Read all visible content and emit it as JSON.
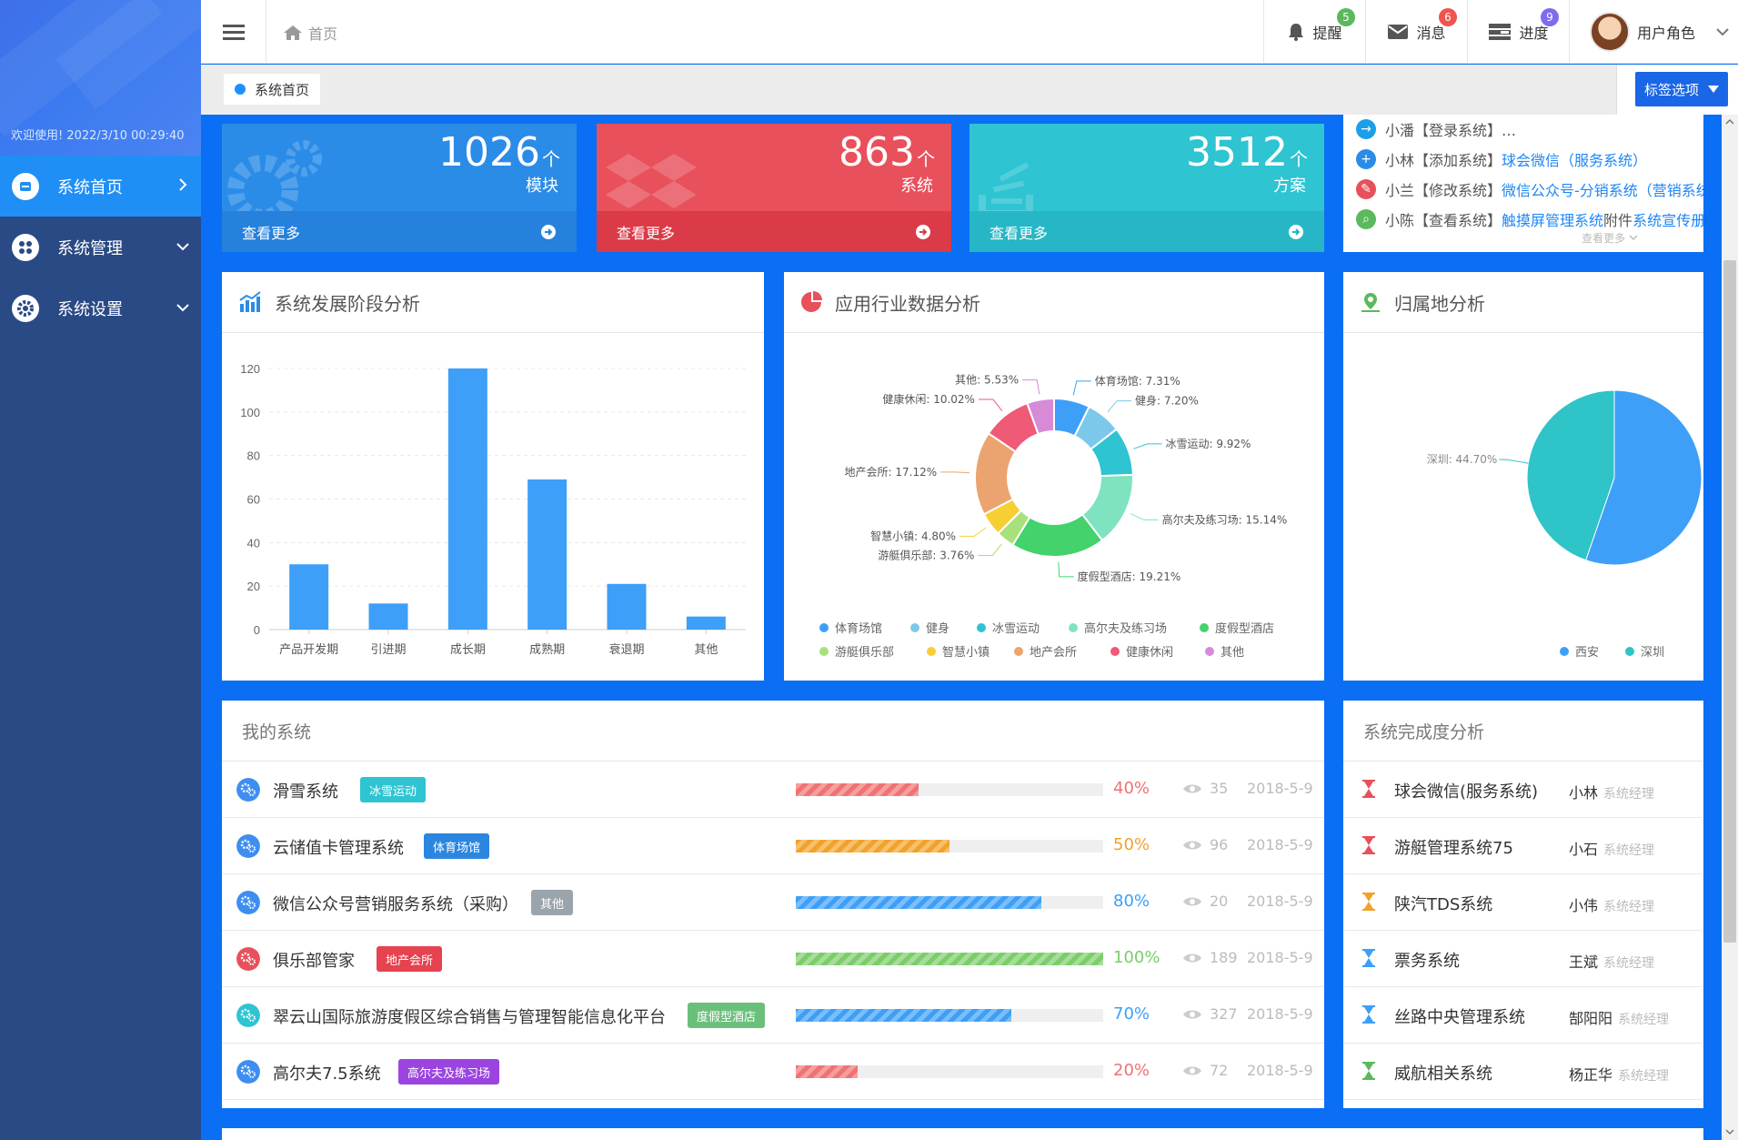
{
  "sidebar": {
    "welcome": "欢迎使用! 2022/3/10 00:29:40",
    "items": [
      {
        "label": "系统首页",
        "icon": "home-icon",
        "active": true
      },
      {
        "label": "系统管理",
        "icon": "grid-icon",
        "active": false
      },
      {
        "label": "系统设置",
        "icon": "gear-icon",
        "active": false
      }
    ]
  },
  "topbar": {
    "breadcrumb": "首页",
    "reminder": {
      "label": "提醒",
      "badge": "5",
      "color": "#5cb85c"
    },
    "messages": {
      "label": "消息",
      "badge": "6",
      "color": "#f0544f"
    },
    "progress": {
      "label": "进度",
      "badge": "9",
      "color": "#7b6cf0"
    },
    "user": {
      "label": "用户角色"
    }
  },
  "tabbar": {
    "tab": "系统首页",
    "options": "标签选项"
  },
  "stats": [
    {
      "number": "1026",
      "unit": "个",
      "sub": "模块",
      "more": "查看更多",
      "color": "#2b8ce8",
      "foot": "#2581dc"
    },
    {
      "number": "863",
      "unit": "个",
      "sub": "系统",
      "more": "查看更多",
      "color": "#e8505b",
      "foot": "#db3a48"
    },
    {
      "number": "3512",
      "unit": "个",
      "sub": "方案",
      "more": "查看更多",
      "color": "#2ec4d2",
      "foot": "#26b6c6"
    }
  ],
  "activity": {
    "rows": [
      {
        "user": "小潘",
        "action": "【登录系统】…",
        "link": "",
        "extra": "",
        "link2": "",
        "color": "#1aa0e8"
      },
      {
        "user": "小林",
        "action": "【添加系统】",
        "link": "球会微信（服务系统）",
        "extra": "",
        "link2": "",
        "color": "#2b8ce8"
      },
      {
        "user": "小兰",
        "action": "【修改系统】",
        "link": "微信公众号-分销系统（营销系统",
        "extra": "",
        "link2": "",
        "color": "#e8505b"
      },
      {
        "user": "小陈",
        "action": "【查看系统】",
        "link": "触摸屏管理系统",
        "extra": " 附件 ",
        "link2": "系统宣传册",
        "color": "#5cb85c"
      }
    ],
    "more": "查看更多"
  },
  "panels": {
    "stage": "系统发展阶段分析",
    "industry": "应用行业数据分析",
    "region": "归属地分析",
    "my_systems": "我的系统",
    "completion": "系统完成度分析"
  },
  "chart_data": [
    {
      "type": "bar",
      "title": "系统发展阶段分析",
      "categories": [
        "产品开发期",
        "引进期",
        "成长期",
        "成熟期",
        "衰退期",
        "其他"
      ],
      "values": [
        30,
        12,
        120,
        69,
        21,
        6
      ],
      "ylim": [
        0,
        120
      ],
      "yticks": [
        0,
        20,
        40,
        60,
        80,
        100,
        120
      ],
      "grid": true,
      "color": "#3d9ff7"
    },
    {
      "type": "pie",
      "donut": true,
      "title": "应用行业数据分析",
      "slices": [
        {
          "name": "体育场馆",
          "value": 7.31,
          "label": "体育场馆: 7.31%",
          "color": "#3d9ff7"
        },
        {
          "name": "健身",
          "value": 7.2,
          "label": "健身: 7.20%",
          "color": "#7cc8ea"
        },
        {
          "name": "冰雪运动",
          "value": 9.92,
          "label": "冰雪运动: 9.92%",
          "color": "#2ec4d2"
        },
        {
          "name": "高尔夫及练习场",
          "value": 15.14,
          "label": "高尔夫及练习场: 15.14%",
          "color": "#7fe3bf"
        },
        {
          "name": "度假型酒店",
          "value": 19.21,
          "label": "度假型酒店: 19.21%",
          "color": "#43d26c"
        },
        {
          "name": "游艇俱乐部",
          "value": 3.76,
          "label": "游艇俱乐部: 3.76%",
          "color": "#a8e07a"
        },
        {
          "name": "智慧小镇",
          "value": 4.8,
          "label": "智慧小镇: 4.80%",
          "color": "#f7cf34"
        },
        {
          "name": "地产会所",
          "value": 17.12,
          "label": "地产会所: 17.12%",
          "color": "#eba46f"
        },
        {
          "name": "健康休闲",
          "value": 10.02,
          "label": "健康休闲: 10.02%",
          "color": "#ef5a77"
        },
        {
          "name": "其他",
          "value": 5.53,
          "label": "其他: 5.53%",
          "color": "#d68ad8"
        }
      ],
      "legend": "bottom"
    },
    {
      "type": "pie",
      "title": "归属地分析",
      "slices": [
        {
          "name": "西安",
          "value": 55.3,
          "label": "",
          "color": "#3d9ff7"
        },
        {
          "name": "深圳",
          "value": 44.7,
          "label": "深圳: 44.70%",
          "color": "#2ec4c8"
        }
      ],
      "legend": "bottom"
    }
  ],
  "systems": [
    {
      "name": "滑雪系统",
      "tag": "冰雪运动",
      "tag_color": "#2ec4d2",
      "percent": 40,
      "pct_label": "40%",
      "color": "#f07272",
      "views": "35",
      "date": "2018-5-9",
      "icon_color": "#3d8ef0"
    },
    {
      "name": "云储值卡管理系统",
      "tag": "体育场馆",
      "tag_color": "#2b86e0",
      "percent": 50,
      "pct_label": "50%",
      "color": "#f1a22a",
      "views": "96",
      "date": "2018-5-9",
      "icon_color": "#3d8ef0"
    },
    {
      "name": "微信公众号营销服务系统（采购）",
      "tag": "其他",
      "tag_color": "#9aa4ad",
      "percent": 80,
      "pct_label": "80%",
      "color": "#3d9ff7",
      "views": "20",
      "date": "2018-5-9",
      "icon_color": "#3d8ef0"
    },
    {
      "name": "俱乐部管家",
      "tag": "地产会所",
      "tag_color": "#e5434f",
      "percent": 100,
      "pct_label": "100%",
      "color": "#7ccd6a",
      "views": "189",
      "date": "2018-5-9",
      "icon_color": "#e8505b"
    },
    {
      "name": "翠云山国际旅游度假区综合销售与管理智能信息化平台",
      "tag": "度假型酒店",
      "tag_color": "#6ac07b",
      "percent": 70,
      "pct_label": "70%",
      "color": "#3d9ff7",
      "views": "327",
      "date": "2018-5-9",
      "icon_color": "#2ec4d2"
    },
    {
      "name": "高尔夫7.5系统",
      "tag": "高尔夫及练习场",
      "tag_color": "#9b44e0",
      "percent": 20,
      "pct_label": "20%",
      "color": "#f07272",
      "views": "72",
      "date": "2018-5-9",
      "icon_color": "#3d8ef0"
    }
  ],
  "completion": [
    {
      "name": "球会微信(服务系统)",
      "person": "小林",
      "role": "系统经理",
      "color": "#e8505b"
    },
    {
      "name": "游艇管理系统75",
      "person": "小石",
      "role": "系统经理",
      "color": "#e8505b"
    },
    {
      "name": "陕汽TDS系统",
      "person": "小伟",
      "role": "系统经理",
      "color": "#f1a22a"
    },
    {
      "name": "票务系统",
      "person": "王斌",
      "role": "系统经理",
      "color": "#3d9ff7"
    },
    {
      "name": "丝路中央管理系统",
      "person": "郜阳阳",
      "role": "系统经理",
      "color": "#3d9ff7"
    },
    {
      "name": "威航相关系统",
      "person": "杨正华",
      "role": "系统经理",
      "color": "#5cb85c"
    }
  ]
}
